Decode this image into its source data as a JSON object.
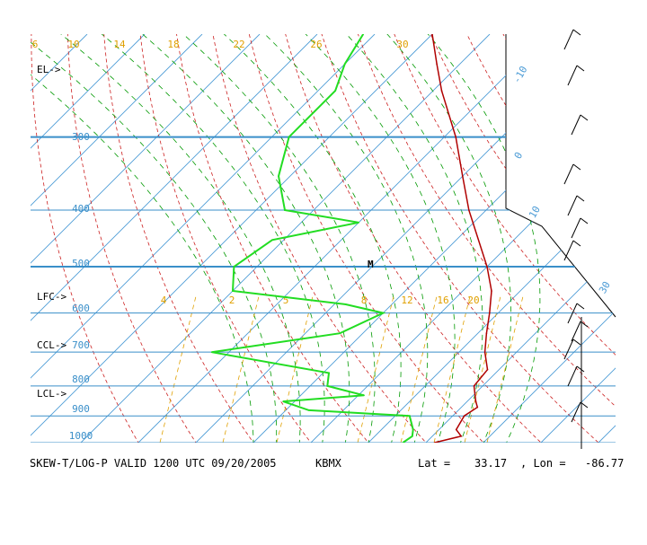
{
  "chart_data": {
    "type": "line",
    "title": "SKEW-T/LOG-P VALID 1200 UTC 09/20/2005",
    "station": "KBMX",
    "lat_label": "Lat =",
    "lat_value": "33.17",
    "lon_label": ", Lon =",
    "lon_value": "-86.77",
    "ylim": [
      1000,
      200
    ],
    "pressure_ticks": [
      "300",
      "400",
      "500",
      "600",
      "700",
      "800",
      "900",
      "1000"
    ],
    "mixing_ratio_top_labels": [
      "6",
      "10",
      "14",
      "18",
      "22",
      "26",
      "30"
    ],
    "isotherm_labels": [
      "-10",
      "0",
      "10",
      "30"
    ],
    "mixing_ratio_labels": [
      "4",
      "2",
      "5",
      "8",
      "12",
      "16",
      "20"
    ],
    "level_markers": [
      "EL->",
      "LFC->",
      "CCL->",
      "LCL->"
    ],
    "special_marker": "M",
    "series": [
      {
        "values": [
          [
            1000,
            21.5
          ],
          [
            975,
            25.0
          ],
          [
            950,
            23.0
          ],
          [
            900,
            22.0
          ],
          [
            870,
            22.8
          ],
          [
            850,
            21.5
          ],
          [
            800,
            18.5
          ],
          [
            750,
            18.0
          ],
          [
            700,
            14.5
          ],
          [
            650,
            11.5
          ],
          [
            600,
            8.5
          ],
          [
            550,
            5.0
          ],
          [
            500,
            0.0
          ],
          [
            400,
            -13.0
          ],
          [
            350,
            -20.0
          ],
          [
            300,
            -28.0
          ],
          [
            250,
            -38.5
          ],
          [
            225,
            -44.0
          ],
          [
            200,
            -50.0
          ]
        ]
      },
      {
        "values": [
          [
            1000,
            16.0
          ],
          [
            975,
            16.5
          ],
          [
            950,
            15.5
          ],
          [
            900,
            12.5
          ],
          [
            880,
            -6.0
          ],
          [
            850,
            -12.0
          ],
          [
            830,
            1.0
          ],
          [
            800,
            -7.0
          ],
          [
            760,
            -9.0
          ],
          [
            700,
            -33.0
          ],
          [
            650,
            -14.0
          ],
          [
            600,
            -10.0
          ],
          [
            580,
            -18.0
          ],
          [
            550,
            -40.0
          ],
          [
            500,
            -44.0
          ],
          [
            450,
            -42.0
          ],
          [
            420,
            -30.0
          ],
          [
            400,
            -45.0
          ],
          [
            350,
            -52.0
          ],
          [
            300,
            -57.0
          ],
          [
            250,
            -57.0
          ],
          [
            225,
            -60.0
          ],
          [
            200,
            -62.0
          ]
        ]
      }
    ],
    "colors": {
      "isobar": "#3a8fc9",
      "isotherm": "#4d9cd6",
      "dry_adiabat": "#cc2020",
      "moist_adiabat": "#009900",
      "mixing_ratio": "#e0a000",
      "temperature": "#b00000",
      "dewpoint": "#22dd22",
      "text": "#000000"
    }
  }
}
